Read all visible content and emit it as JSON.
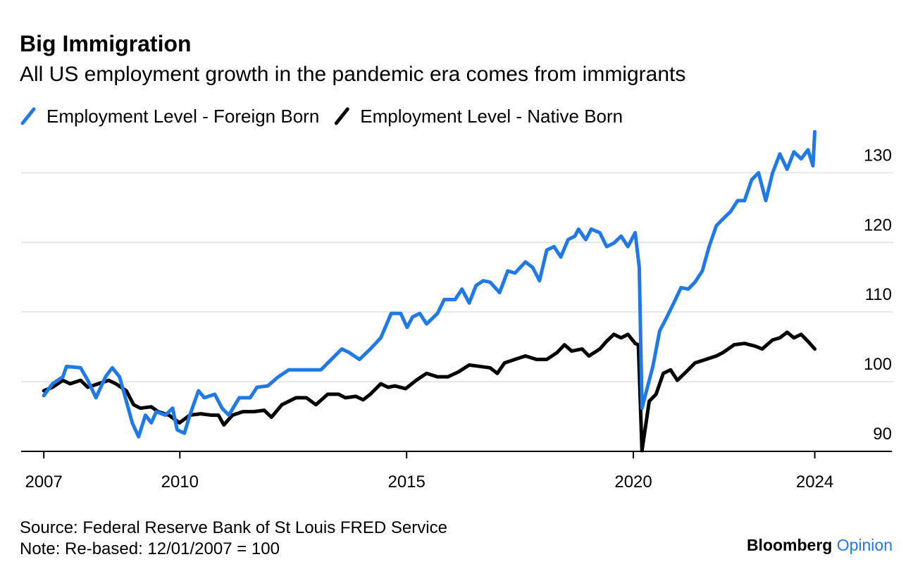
{
  "chart_data": {
    "type": "line",
    "title": "Big Immigration",
    "subtitle": "All US employment growth in the pandemic era comes from immigrants",
    "source": "Source: Federal Reserve Bank of St Louis FRED Service",
    "note": "Note: Re-based: 12/01/2007 = 100",
    "xlim": [
      2006.5,
      2025.7
    ],
    "xticks": [
      2007,
      2010,
      2015,
      2020,
      2024
    ],
    "ylim": [
      90,
      136
    ],
    "yticks": [
      90,
      100,
      110,
      120,
      130
    ],
    "grid": true,
    "legend": "top-left",
    "series": [
      {
        "name": "Employment Level - Foreign Born",
        "color": "#1f7ae8",
        "x": [
          2007.0,
          2007.19,
          2007.42,
          2007.5,
          2007.81,
          2007.97,
          2008.15,
          2008.36,
          2008.51,
          2008.67,
          2008.82,
          2008.95,
          2009.09,
          2009.24,
          2009.37,
          2009.48,
          2009.68,
          2009.84,
          2009.94,
          2010.1,
          2010.22,
          2010.41,
          2010.54,
          2010.77,
          2010.93,
          2011.08,
          2011.31,
          2011.55,
          2011.7,
          2011.94,
          2012.17,
          2012.4,
          2012.64,
          2012.87,
          2013.11,
          2013.34,
          2013.57,
          2013.73,
          2013.96,
          2014.2,
          2014.43,
          2014.66,
          2014.87,
          2015.01,
          2015.13,
          2015.29,
          2015.44,
          2015.68,
          2015.83,
          2016.07,
          2016.22,
          2016.38,
          2016.53,
          2016.69,
          2016.84,
          2017.05,
          2017.23,
          2017.39,
          2017.62,
          2017.78,
          2017.93,
          2018.09,
          2018.25,
          2018.4,
          2018.56,
          2018.71,
          2018.79,
          2018.95,
          2019.07,
          2019.26,
          2019.41,
          2019.57,
          2019.73,
          2019.88,
          2020.04,
          2020.13,
          2020.19,
          2020.27,
          2020.43,
          2020.58,
          2020.74,
          2020.89,
          2021.05,
          2021.21,
          2021.36,
          2021.52,
          2021.67,
          2021.83,
          2021.98,
          2022.14,
          2022.3,
          2022.45,
          2022.61,
          2022.76,
          2022.92,
          2023.07,
          2023.23,
          2023.39,
          2023.54,
          2023.7,
          2023.85,
          2023.96,
          2024.0
        ],
        "values": [
          98.0,
          99.7,
          100.7,
          102.2,
          102.0,
          100.2,
          97.7,
          100.7,
          102.0,
          100.7,
          97.2,
          94.1,
          92.1,
          95.2,
          94.1,
          95.7,
          95.2,
          96.2,
          93.1,
          92.6,
          95.2,
          98.7,
          97.7,
          98.2,
          96.2,
          95.2,
          97.7,
          97.7,
          99.2,
          99.4,
          100.7,
          101.7,
          101.7,
          101.7,
          101.7,
          103.2,
          104.7,
          104.2,
          103.2,
          104.7,
          106.3,
          109.8,
          109.8,
          107.8,
          109.3,
          109.8,
          108.3,
          109.8,
          111.8,
          111.8,
          113.3,
          111.3,
          113.8,
          114.5,
          114.3,
          112.8,
          115.9,
          115.6,
          117.2,
          116.4,
          114.5,
          118.9,
          119.4,
          117.9,
          120.4,
          120.9,
          121.9,
          120.4,
          121.9,
          121.4,
          119.4,
          119.9,
          120.9,
          119.4,
          121.4,
          116.4,
          96.2,
          98.2,
          102.2,
          107.3,
          109.3,
          111.3,
          113.5,
          113.3,
          114.3,
          115.9,
          119.4,
          122.4,
          123.4,
          124.4,
          126.0,
          126.0,
          129.0,
          130.0,
          126.0,
          130.0,
          132.7,
          130.5,
          133.0,
          132.0,
          133.3,
          131.0,
          135.9
        ]
      },
      {
        "name": "Employment Level - Native Born",
        "color": "#000000",
        "x": [
          2007.0,
          2007.19,
          2007.42,
          2007.58,
          2007.81,
          2007.97,
          2008.2,
          2008.43,
          2008.59,
          2008.82,
          2008.98,
          2009.13,
          2009.37,
          2009.52,
          2009.76,
          2009.99,
          2010.22,
          2010.46,
          2010.69,
          2010.85,
          2010.97,
          2011.16,
          2011.39,
          2011.63,
          2011.86,
          2012.02,
          2012.25,
          2012.56,
          2012.79,
          2013.0,
          2013.26,
          2013.5,
          2013.65,
          2013.88,
          2014.04,
          2014.2,
          2014.43,
          2014.59,
          2014.74,
          2014.98,
          2015.21,
          2015.44,
          2015.68,
          2015.91,
          2016.14,
          2016.38,
          2016.61,
          2016.84,
          2017.0,
          2017.16,
          2017.39,
          2017.62,
          2017.86,
          2018.09,
          2018.32,
          2018.48,
          2018.64,
          2018.87,
          2019.02,
          2019.26,
          2019.41,
          2019.57,
          2019.73,
          2019.88,
          2020.04,
          2020.11,
          2020.19,
          2020.35,
          2020.5,
          2020.66,
          2020.82,
          2020.97,
          2021.13,
          2021.36,
          2021.6,
          2021.83,
          2021.98,
          2022.22,
          2022.45,
          2022.69,
          2022.84,
          2023.07,
          2023.23,
          2023.39,
          2023.54,
          2023.7,
          2023.85,
          2024.0
        ],
        "values": [
          98.7,
          99.2,
          100.2,
          99.7,
          100.2,
          99.2,
          99.7,
          100.2,
          99.7,
          98.7,
          96.7,
          96.2,
          96.4,
          95.7,
          95.2,
          94.1,
          95.2,
          95.4,
          95.2,
          95.2,
          93.8,
          95.2,
          95.7,
          95.7,
          95.9,
          94.9,
          96.7,
          97.7,
          97.7,
          96.7,
          98.2,
          98.2,
          97.7,
          97.9,
          97.4,
          98.2,
          99.7,
          99.2,
          99.4,
          99.0,
          100.2,
          101.2,
          100.7,
          100.7,
          101.4,
          102.4,
          102.2,
          102.0,
          101.2,
          102.7,
          103.2,
          103.7,
          103.2,
          103.2,
          104.2,
          105.3,
          104.4,
          104.7,
          103.7,
          104.7,
          105.8,
          106.8,
          106.3,
          106.8,
          105.5,
          105.3,
          90.1,
          97.2,
          98.2,
          101.2,
          101.7,
          100.2,
          101.2,
          102.7,
          103.2,
          103.7,
          104.2,
          105.3,
          105.5,
          105.1,
          104.7,
          106.0,
          106.3,
          107.1,
          106.3,
          106.8,
          105.8,
          104.7
        ]
      }
    ]
  },
  "branding": {
    "name": "Bloomberg",
    "section": "Opinion"
  }
}
